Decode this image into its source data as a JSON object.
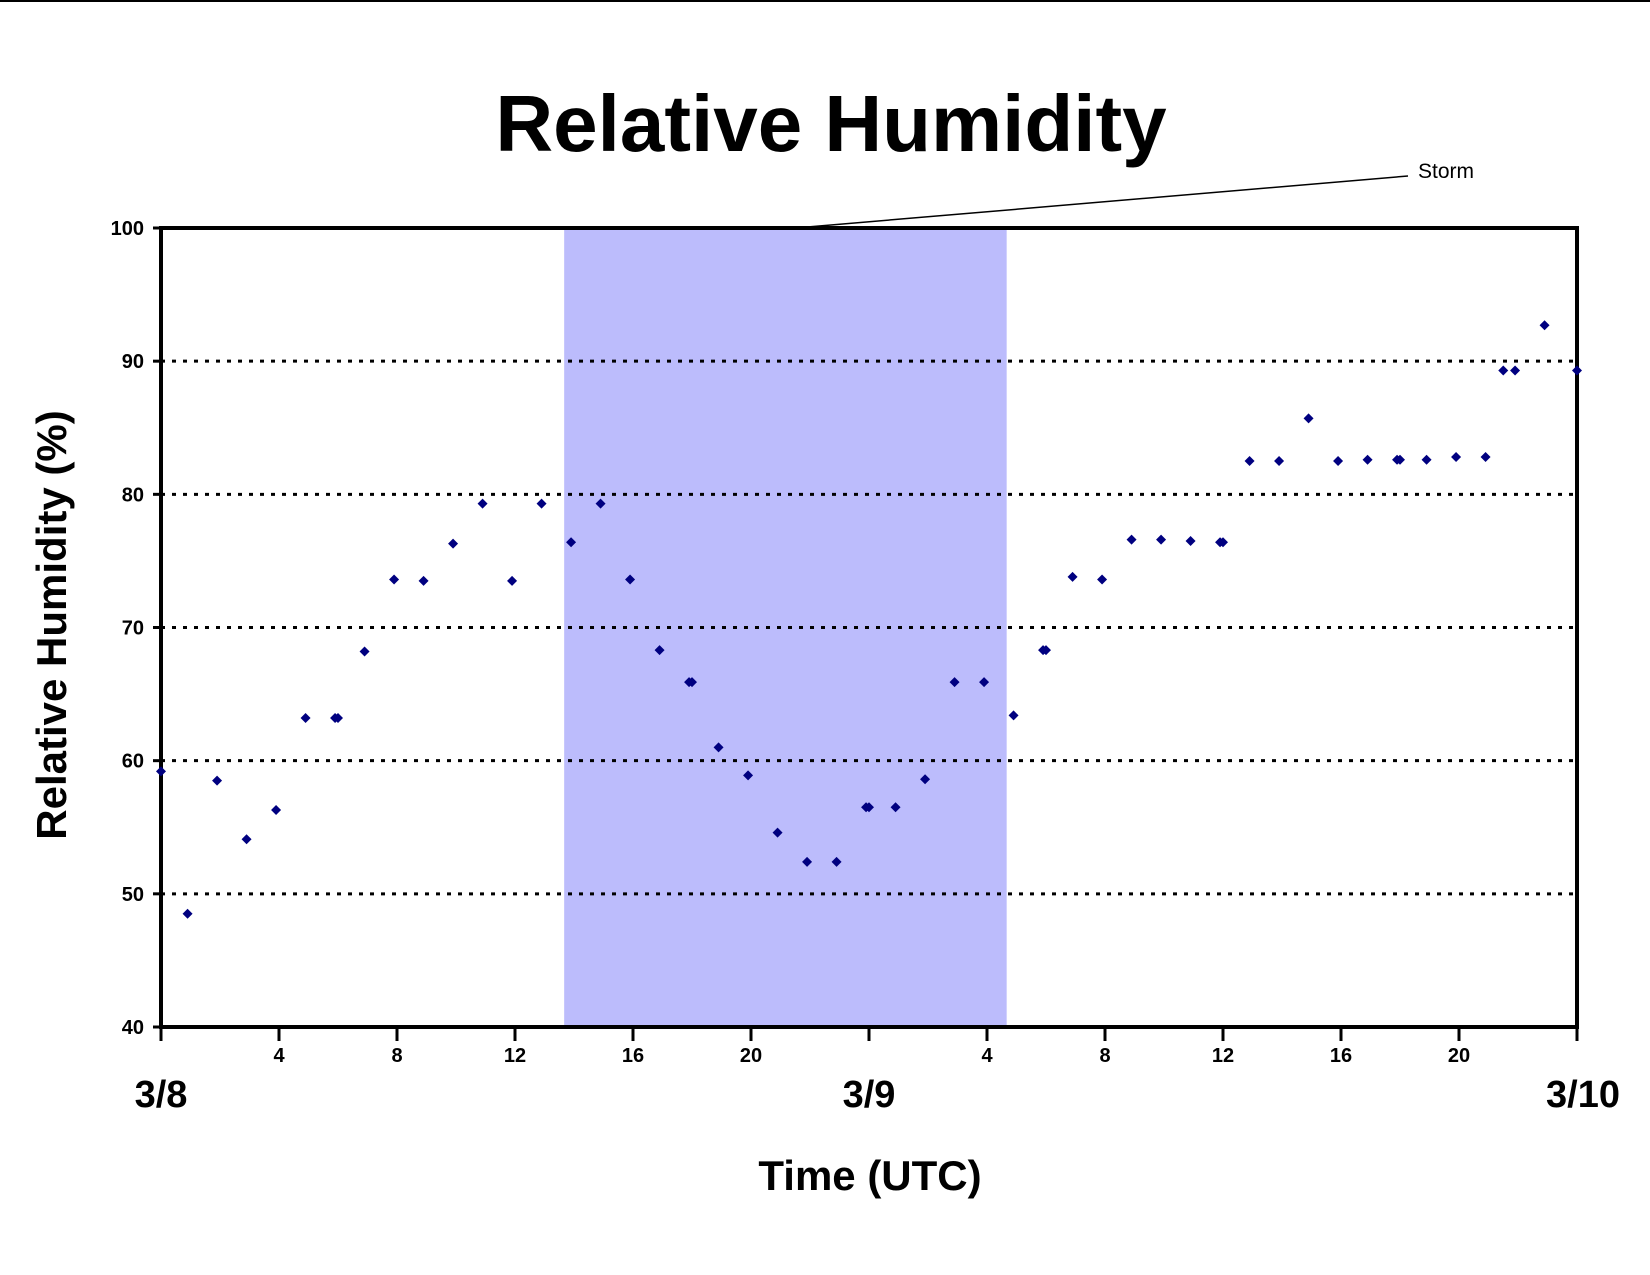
{
  "chart_data": {
    "type": "scatter",
    "title": "Relative Humidity",
    "xlabel": "Time (UTC)",
    "ylabel": "Relative Humidity (%)",
    "ylim": [
      40,
      100
    ],
    "yticks": [
      40,
      50,
      60,
      70,
      80,
      90,
      100
    ],
    "gridlines": [
      50,
      60,
      70,
      80,
      90
    ],
    "grid": "dotted horizontal",
    "xlim": [
      "3/8 00:00",
      "3/10 00:00"
    ],
    "x_hour_ticks": [
      {
        "hour": 0,
        "label": ""
      },
      {
        "hour": 4,
        "label": "4"
      },
      {
        "hour": 8,
        "label": "8"
      },
      {
        "hour": 12,
        "label": "12"
      },
      {
        "hour": 16,
        "label": "16"
      },
      {
        "hour": 20,
        "label": "20"
      },
      {
        "hour": 24,
        "label": ""
      },
      {
        "hour": 28,
        "label": "4"
      },
      {
        "hour": 32,
        "label": "8"
      },
      {
        "hour": 36,
        "label": "12"
      },
      {
        "hour": 40,
        "label": "16"
      },
      {
        "hour": 44,
        "label": "20"
      },
      {
        "hour": 48,
        "label": ""
      }
    ],
    "date_labels": [
      {
        "hour": 0,
        "label": "3/8"
      },
      {
        "hour": 24,
        "label": "3/9"
      },
      {
        "hour": 48,
        "label": "3/10"
      }
    ],
    "shaded_region": {
      "label": "Storm",
      "x_start": "3/8 13:40",
      "x_end": "3/9 04:40",
      "color": "#bcbcfc"
    },
    "marker_color": "#000080",
    "series": [
      {
        "x": [
          "3/8 00:00",
          "3/8 00:54",
          "3/8 01:54",
          "3/8 02:54",
          "3/8 03:54",
          "3/8 04:54",
          "3/8 05:54",
          "3/8 06:00",
          "3/8 06:54",
          "3/8 07:54",
          "3/8 08:54",
          "3/8 09:54",
          "3/8 10:54",
          "3/8 11:54",
          "3/8 12:54",
          "3/8 13:54",
          "3/8 14:54",
          "3/8 15:54",
          "3/8 16:54",
          "3/8 17:54",
          "3/8 18:00",
          "3/8 18:54",
          "3/8 19:54",
          "3/8 20:54",
          "3/8 21:54",
          "3/8 22:54",
          "3/8 23:54",
          "3/9 00:00",
          "3/9 00:54",
          "3/9 01:54",
          "3/9 02:54",
          "3/9 03:54",
          "3/9 04:54",
          "3/9 05:54",
          "3/9 06:00",
          "3/9 06:54",
          "3/9 07:54",
          "3/9 08:54",
          "3/9 09:54",
          "3/9 10:54",
          "3/9 11:54",
          "3/9 12:00",
          "3/9 12:54",
          "3/9 13:54",
          "3/9 14:54",
          "3/9 15:54",
          "3/9 16:54",
          "3/9 17:54",
          "3/9 18:00",
          "3/9 18:54",
          "3/9 19:54",
          "3/9 20:54",
          "3/9 21:30",
          "3/9 21:54",
          "3/9 22:54",
          "3/10 00:00"
        ],
        "y": [
          59.2,
          48.5,
          58.5,
          54.1,
          56.3,
          63.2,
          63.2,
          63.2,
          68.2,
          73.6,
          73.5,
          76.3,
          79.3,
          73.5,
          79.3,
          76.4,
          79.3,
          73.6,
          68.3,
          65.9,
          65.9,
          61.0,
          58.9,
          54.6,
          52.4,
          52.4,
          56.5,
          56.5,
          56.5,
          58.6,
          65.9,
          65.9,
          63.4,
          68.3,
          68.3,
          73.8,
          73.6,
          76.6,
          76.6,
          76.5,
          76.4,
          76.4,
          82.5,
          82.5,
          85.7,
          82.5,
          82.6,
          82.6,
          82.6,
          82.6,
          82.8,
          82.8,
          89.3,
          89.3,
          92.7,
          89.3
        ]
      }
    ]
  }
}
